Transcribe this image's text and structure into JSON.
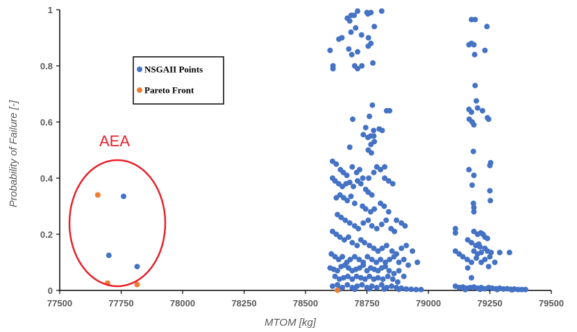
{
  "chart_data": {
    "type": "scatter",
    "xlabel": "MTOM [kg]",
    "ylabel": "Probability of Failure [-]",
    "xlim": [
      77500,
      79500
    ],
    "ylim": [
      0,
      1
    ],
    "x_ticks": [
      "77500",
      "77750",
      "78000",
      "78250",
      "78500",
      "78750",
      "79000",
      "79250",
      "79500"
    ],
    "y_ticks": [
      "0",
      "0.2",
      "0.4",
      "0.6",
      "0.8",
      "1"
    ],
    "legend_position": "upper-left-inside",
    "annotation": {
      "label": "AEA",
      "color": "#e8202a"
    },
    "series": [
      {
        "name": "NSGAII Points",
        "color": "#4472c4",
        "points": [
          [
            77760,
            0.335
          ],
          [
            77700,
            0.125
          ],
          [
            77815,
            0.085
          ],
          [
            78600,
            0.855
          ],
          [
            78612,
            0.8
          ],
          [
            78612,
            0.79
          ],
          [
            78636,
            0.895
          ],
          [
            78648,
            0.9
          ],
          [
            78670,
            0.97
          ],
          [
            78680,
            0.96
          ],
          [
            78686,
            0.98
          ],
          [
            78698,
            0.98
          ],
          [
            78712,
            0.995
          ],
          [
            78750,
            0.99
          ],
          [
            78754,
            0.985
          ],
          [
            78766,
            0.99
          ],
          [
            78810,
            0.995
          ],
          [
            78685,
            0.92
          ],
          [
            78704,
            0.935
          ],
          [
            78728,
            0.91
          ],
          [
            78676,
            0.86
          ],
          [
            78688,
            0.84
          ],
          [
            78712,
            0.85
          ],
          [
            78755,
            0.87
          ],
          [
            78766,
            0.88
          ],
          [
            78780,
            0.94
          ],
          [
            78700,
            0.8
          ],
          [
            78712,
            0.79
          ],
          [
            78729,
            0.8
          ],
          [
            78774,
            0.81
          ],
          [
            78756,
            0.9
          ],
          [
            78692,
            0.61
          ],
          [
            78760,
            0.62
          ],
          [
            78772,
            0.66
          ],
          [
            78830,
            0.64
          ],
          [
            78842,
            0.64
          ],
          [
            78745,
            0.58
          ],
          [
            78777,
            0.57
          ],
          [
            78800,
            0.575
          ],
          [
            78812,
            0.57
          ],
          [
            78735,
            0.555
          ],
          [
            78754,
            0.545
          ],
          [
            78765,
            0.55
          ],
          [
            78778,
            0.55
          ],
          [
            78680,
            0.51
          ],
          [
            78755,
            0.5
          ],
          [
            78766,
            0.52
          ],
          [
            78780,
            0.53
          ],
          [
            78768,
            0.49
          ],
          [
            78610,
            0.46
          ],
          [
            78625,
            0.45
          ],
          [
            78642,
            0.43
          ],
          [
            78654,
            0.42
          ],
          [
            78668,
            0.41
          ],
          [
            78690,
            0.44
          ],
          [
            78708,
            0.42
          ],
          [
            78720,
            0.43
          ],
          [
            78733,
            0.4
          ],
          [
            78757,
            0.4
          ],
          [
            78778,
            0.42
          ],
          [
            78790,
            0.44
          ],
          [
            78805,
            0.43
          ],
          [
            78822,
            0.44
          ],
          [
            78610,
            0.4
          ],
          [
            78620,
            0.39
          ],
          [
            78635,
            0.38
          ],
          [
            78650,
            0.37
          ],
          [
            78665,
            0.38
          ],
          [
            78680,
            0.385
          ],
          [
            78695,
            0.37
          ],
          [
            78712,
            0.39
          ],
          [
            78725,
            0.38
          ],
          [
            78745,
            0.36
          ],
          [
            78755,
            0.35
          ],
          [
            78770,
            0.34
          ],
          [
            78822,
            0.4
          ],
          [
            78838,
            0.39
          ],
          [
            78855,
            0.38
          ],
          [
            78625,
            0.33
          ],
          [
            78640,
            0.34
          ],
          [
            78655,
            0.33
          ],
          [
            78670,
            0.32
          ],
          [
            78685,
            0.335
          ],
          [
            78700,
            0.31
          ],
          [
            78732,
            0.3
          ],
          [
            78745,
            0.29
          ],
          [
            78765,
            0.28
          ],
          [
            78780,
            0.29
          ],
          [
            78805,
            0.31
          ],
          [
            78820,
            0.3
          ],
          [
            78838,
            0.28
          ],
          [
            78870,
            0.25
          ],
          [
            78890,
            0.24
          ],
          [
            78630,
            0.27
          ],
          [
            78645,
            0.26
          ],
          [
            78662,
            0.25
          ],
          [
            78680,
            0.24
          ],
          [
            78700,
            0.23
          ],
          [
            78715,
            0.22
          ],
          [
            78735,
            0.24
          ],
          [
            78755,
            0.25
          ],
          [
            78770,
            0.23
          ],
          [
            78790,
            0.22
          ],
          [
            78810,
            0.235
          ],
          [
            78828,
            0.25
          ],
          [
            78848,
            0.22
          ],
          [
            78862,
            0.21
          ],
          [
            78905,
            0.23
          ],
          [
            78610,
            0.21
          ],
          [
            78625,
            0.2
          ],
          [
            78640,
            0.19
          ],
          [
            78658,
            0.18
          ],
          [
            78675,
            0.19
          ],
          [
            78690,
            0.17
          ],
          [
            78710,
            0.16
          ],
          [
            78725,
            0.18
          ],
          [
            78740,
            0.17
          ],
          [
            78760,
            0.16
          ],
          [
            78778,
            0.15
          ],
          [
            78795,
            0.14
          ],
          [
            78812,
            0.15
          ],
          [
            78830,
            0.16
          ],
          [
            78852,
            0.14
          ],
          [
            78870,
            0.13
          ],
          [
            78890,
            0.15
          ],
          [
            78910,
            0.16
          ],
          [
            78935,
            0.14
          ],
          [
            78605,
            0.13
          ],
          [
            78620,
            0.12
          ],
          [
            78635,
            0.11
          ],
          [
            78650,
            0.12
          ],
          [
            78668,
            0.1
          ],
          [
            78682,
            0.11
          ],
          [
            78700,
            0.12
          ],
          [
            78718,
            0.11
          ],
          [
            78735,
            0.1
          ],
          [
            78752,
            0.12
          ],
          [
            78770,
            0.11
          ],
          [
            78788,
            0.1
          ],
          [
            78805,
            0.11
          ],
          [
            78825,
            0.1
          ],
          [
            78842,
            0.11
          ],
          [
            78860,
            0.12
          ],
          [
            78880,
            0.1
          ],
          [
            78900,
            0.11
          ],
          [
            78918,
            0.09
          ],
          [
            78955,
            0.1
          ],
          [
            78600,
            0.08
          ],
          [
            78615,
            0.075
          ],
          [
            78630,
            0.07
          ],
          [
            78645,
            0.085
          ],
          [
            78660,
            0.09
          ],
          [
            78675,
            0.08
          ],
          [
            78690,
            0.07
          ],
          [
            78705,
            0.075
          ],
          [
            78720,
            0.08
          ],
          [
            78735,
            0.09
          ],
          [
            78750,
            0.07
          ],
          [
            78765,
            0.08
          ],
          [
            78780,
            0.075
          ],
          [
            78795,
            0.07
          ],
          [
            78810,
            0.08
          ],
          [
            78825,
            0.085
          ],
          [
            78840,
            0.07
          ],
          [
            78860,
            0.06
          ],
          [
            78880,
            0.07
          ],
          [
            78900,
            0.05
          ],
          [
            78620,
            0.05
          ],
          [
            78638,
            0.04
          ],
          [
            78655,
            0.045
          ],
          [
            78672,
            0.05
          ],
          [
            78690,
            0.04
          ],
          [
            78708,
            0.05
          ],
          [
            78725,
            0.045
          ],
          [
            78742,
            0.04
          ],
          [
            78760,
            0.05
          ],
          [
            78778,
            0.04
          ],
          [
            78795,
            0.045
          ],
          [
            78815,
            0.04
          ],
          [
            78835,
            0.05
          ],
          [
            78855,
            0.04
          ],
          [
            78875,
            0.03
          ],
          [
            78610,
            0.015
          ],
          [
            78630,
            0.02
          ],
          [
            78650,
            0.01
          ],
          [
            78670,
            0.02
          ],
          [
            78690,
            0.01
          ],
          [
            78710,
            0.015
          ],
          [
            78730,
            0.02
          ],
          [
            78750,
            0.01
          ],
          [
            78770,
            0.015
          ],
          [
            78790,
            0.01
          ],
          [
            78810,
            0.02
          ],
          [
            78830,
            0.01
          ],
          [
            78850,
            0.015
          ],
          [
            78870,
            0.01
          ],
          [
            78890,
            0.008
          ],
          [
            78910,
            0.005
          ],
          [
            78930,
            0.004
          ],
          [
            78950,
            0.003
          ],
          [
            78970,
            0.003
          ],
          [
            78640,
            0.005
          ],
          [
            78700,
            0.004
          ],
          [
            78760,
            0.006
          ],
          [
            78820,
            0.005
          ],
          [
            78880,
            0.004
          ],
          [
            79175,
            0.965
          ],
          [
            79190,
            0.965
          ],
          [
            79238,
            0.94
          ],
          [
            79175,
            0.88
          ],
          [
            79185,
            0.875
          ],
          [
            79165,
            0.875
          ],
          [
            79230,
            0.855
          ],
          [
            79188,
            0.84
          ],
          [
            79190,
            0.73
          ],
          [
            79195,
            0.675
          ],
          [
            79200,
            0.65
          ],
          [
            79165,
            0.645
          ],
          [
            79175,
            0.635
          ],
          [
            79220,
            0.64
          ],
          [
            79166,
            0.61
          ],
          [
            79240,
            0.615
          ],
          [
            79245,
            0.61
          ],
          [
            79178,
            0.6
          ],
          [
            79185,
            0.59
          ],
          [
            79183,
            0.495
          ],
          [
            79253,
            0.455
          ],
          [
            79250,
            0.445
          ],
          [
            79165,
            0.43
          ],
          [
            79185,
            0.41
          ],
          [
            79178,
            0.375
          ],
          [
            79250,
            0.355
          ],
          [
            79252,
            0.32
          ],
          [
            79183,
            0.31
          ],
          [
            79185,
            0.295
          ],
          [
            79185,
            0.28
          ],
          [
            79110,
            0.22
          ],
          [
            79110,
            0.205
          ],
          [
            79185,
            0.21
          ],
          [
            79200,
            0.2
          ],
          [
            79213,
            0.205
          ],
          [
            79222,
            0.2
          ],
          [
            79230,
            0.19
          ],
          [
            79240,
            0.185
          ],
          [
            79160,
            0.18
          ],
          [
            79175,
            0.17
          ],
          [
            79193,
            0.16
          ],
          [
            79210,
            0.155
          ],
          [
            79230,
            0.15
          ],
          [
            79205,
            0.165
          ],
          [
            79185,
            0.14
          ],
          [
            79200,
            0.13
          ],
          [
            79215,
            0.135
          ],
          [
            79240,
            0.14
          ],
          [
            79255,
            0.135
          ],
          [
            79290,
            0.135
          ],
          [
            79330,
            0.135
          ],
          [
            79110,
            0.14
          ],
          [
            79125,
            0.13
          ],
          [
            79140,
            0.12
          ],
          [
            79158,
            0.11
          ],
          [
            79175,
            0.1
          ],
          [
            79195,
            0.115
          ],
          [
            79215,
            0.1
          ],
          [
            79230,
            0.11
          ],
          [
            79250,
            0.12
          ],
          [
            79270,
            0.1
          ],
          [
            79160,
            0.08
          ],
          [
            79245,
            0.085
          ],
          [
            79175,
            0.045
          ],
          [
            79110,
            0.015
          ],
          [
            79125,
            0.01
          ],
          [
            79140,
            0.012
          ],
          [
            79155,
            0.008
          ],
          [
            79170,
            0.01
          ],
          [
            79185,
            0.012
          ],
          [
            79200,
            0.008
          ],
          [
            79215,
            0.01
          ],
          [
            79230,
            0.006
          ],
          [
            79245,
            0.01
          ],
          [
            79260,
            0.008
          ],
          [
            79275,
            0.006
          ],
          [
            79290,
            0.008
          ],
          [
            79305,
            0.005
          ],
          [
            79320,
            0.006
          ],
          [
            79335,
            0.004
          ],
          [
            79350,
            0.005
          ],
          [
            79365,
            0.003
          ],
          [
            79380,
            0.003
          ],
          [
            79395,
            0.003
          ],
          [
            79150,
            0.003
          ],
          [
            79210,
            0.004
          ],
          [
            79280,
            0.003
          ],
          [
            79340,
            0.002
          ]
        ]
      },
      {
        "name": "Pareto Front",
        "color": "#ed7d31",
        "points": [
          [
            77655,
            0.34
          ],
          [
            77695,
            0.026
          ],
          [
            77815,
            0.021
          ],
          [
            78630,
            0.001
          ]
        ]
      }
    ]
  }
}
